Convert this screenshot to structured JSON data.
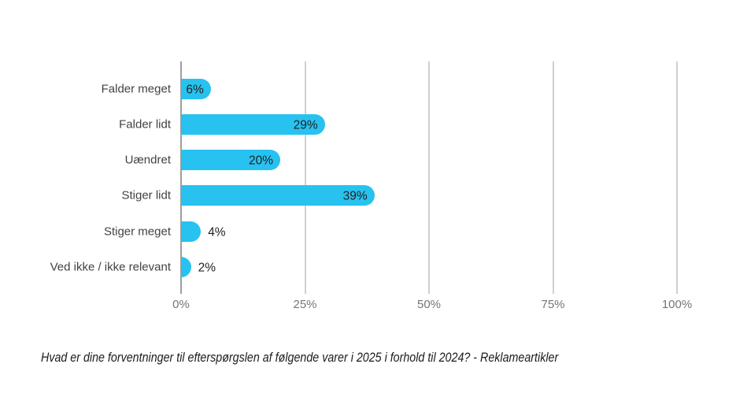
{
  "chart_data": {
    "type": "bar",
    "orientation": "horizontal",
    "title": "",
    "categories": [
      "Falder meget",
      "Falder lidt",
      "Uændret",
      "Stiger lidt",
      "Stiger meget",
      "Ved ikke / ikke relevant"
    ],
    "values": [
      6,
      29,
      20,
      39,
      4,
      2
    ],
    "value_labels": [
      "6%",
      "29%",
      "20%",
      "39%",
      "4%",
      "2%"
    ],
    "xlim": [
      0,
      100
    ],
    "x_ticks": [
      0,
      25,
      50,
      75,
      100
    ],
    "x_tick_labels": [
      "0%",
      "25%",
      "50%",
      "75%",
      "100%"
    ],
    "grid": true,
    "legend": "none",
    "caption": "Hvad er dine forventninger til efterspørgslen af følgende varer i 2025 i forhold til 2024? - Reklameartikler"
  },
  "colors": {
    "bar": "#27c2f0",
    "axis_line": "#9e9e9e",
    "gridline": "#cfcfcf",
    "category_label": "#424242",
    "value_label": "#212121",
    "tick_label": "#757575",
    "caption_text": "#1c1c1c",
    "background": "#ffffff"
  }
}
